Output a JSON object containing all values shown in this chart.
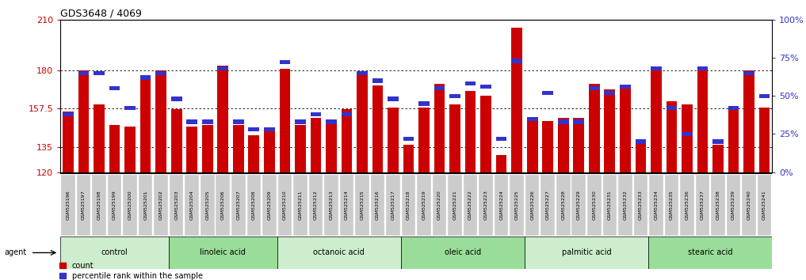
{
  "title": "GDS3648 / 4069",
  "samples": [
    "GSM525196",
    "GSM525197",
    "GSM525198",
    "GSM525199",
    "GSM525200",
    "GSM525201",
    "GSM525202",
    "GSM525203",
    "GSM525204",
    "GSM525205",
    "GSM525206",
    "GSM525207",
    "GSM525208",
    "GSM525209",
    "GSM525210",
    "GSM525211",
    "GSM525212",
    "GSM525213",
    "GSM525214",
    "GSM525215",
    "GSM525216",
    "GSM525217",
    "GSM525218",
    "GSM525219",
    "GSM525220",
    "GSM525221",
    "GSM525222",
    "GSM525223",
    "GSM525224",
    "GSM525225",
    "GSM525226",
    "GSM525227",
    "GSM525228",
    "GSM525229",
    "GSM525230",
    "GSM525231",
    "GSM525232",
    "GSM525233",
    "GSM525234",
    "GSM525235",
    "GSM525236",
    "GSM525237",
    "GSM525238",
    "GSM525239",
    "GSM525240",
    "GSM525241"
  ],
  "counts": [
    156,
    180,
    160,
    148,
    147,
    176,
    180,
    157,
    147,
    148,
    183,
    148,
    142,
    146,
    181,
    148,
    152,
    150,
    157,
    179,
    171,
    158,
    136,
    158,
    172,
    160,
    168,
    165,
    130,
    205,
    151,
    150,
    152,
    152,
    172,
    169,
    170,
    137,
    181,
    162,
    160,
    181,
    136,
    158,
    180,
    158
  ],
  "percentile_ranks": [
    38,
    65,
    65,
    55,
    42,
    62,
    65,
    48,
    33,
    33,
    68,
    33,
    28,
    28,
    72,
    33,
    38,
    33,
    38,
    65,
    60,
    48,
    22,
    45,
    55,
    50,
    58,
    56,
    22,
    73,
    35,
    52,
    33,
    33,
    55,
    52,
    56,
    20,
    68,
    42,
    25,
    68,
    20,
    42,
    65,
    50
  ],
  "groups": [
    {
      "label": "control",
      "start": 0,
      "end": 7
    },
    {
      "label": "linoleic acid",
      "start": 7,
      "end": 14
    },
    {
      "label": "octanoic acid",
      "start": 14,
      "end": 22
    },
    {
      "label": "oleic acid",
      "start": 22,
      "end": 30
    },
    {
      "label": "palmitic acid",
      "start": 30,
      "end": 38
    },
    {
      "label": "stearic acid",
      "start": 38,
      "end": 46
    }
  ],
  "group_colors": [
    "#cceecc",
    "#99dd99",
    "#cceecc",
    "#99dd99",
    "#cceecc",
    "#99dd99"
  ],
  "ymin": 120,
  "ymax": 210,
  "yticks": [
    120,
    135,
    157.5,
    180,
    210
  ],
  "right_yticks": [
    0,
    25,
    50,
    75,
    100
  ],
  "bar_color": "#cc0000",
  "percentile_color": "#3333cc",
  "background_color": "#ffffff",
  "gridline_color": "#000000",
  "tick_label_color_left": "#cc0000",
  "tick_label_color_right": "#3333cc",
  "sample_box_color": "#cccccc",
  "sample_box_edge": "#aaaaaa"
}
